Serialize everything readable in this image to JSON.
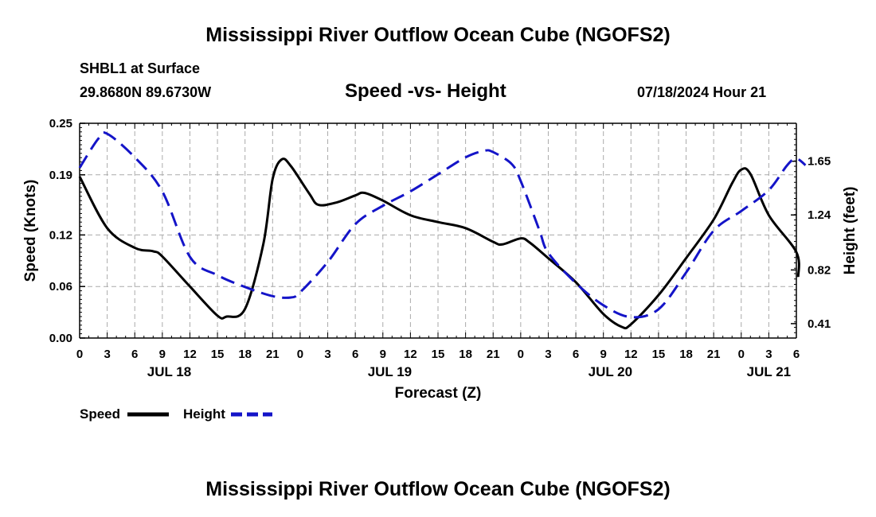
{
  "page": {
    "title_top": "Mississippi River Outflow Ocean Cube (NGOFS2)",
    "title_bottom": "Mississippi River Outflow Ocean Cube (NGOFS2)",
    "station": "SHBL1 at Surface",
    "coords": "29.8680N  89.6730W",
    "chart_subtitle": "Speed -vs- Height",
    "datetime": "07/18/2024 Hour 21"
  },
  "chart_data": {
    "type": "line",
    "xlabel": "Forecast (Z)",
    "ylabel_left": "Speed (Knots)",
    "ylabel_right": "Height (feet)",
    "x_unit": "hours since 2024-07-18 00Z",
    "xlim": [
      0,
      78
    ],
    "ylim_left": [
      0,
      0.25
    ],
    "ylim_right": [
      0.3,
      1.94
    ],
    "yticks_left": [
      0.0,
      0.06,
      0.12,
      0.19,
      0.25
    ],
    "ytick_labels_left": [
      "0.00",
      "0.06",
      "0.12",
      "0.19",
      "0.25"
    ],
    "yticks_right": [
      0.41,
      0.82,
      1.24,
      1.65
    ],
    "ytick_labels_right": [
      "0.41",
      "0.82",
      "1.24",
      "1.65"
    ],
    "xticks": [
      0,
      3,
      6,
      9,
      12,
      15,
      18,
      21,
      24,
      27,
      30,
      33,
      36,
      39,
      42,
      45,
      48,
      51,
      54,
      57,
      60,
      63,
      66,
      69,
      72,
      75,
      78
    ],
    "xtick_labels": [
      "0",
      "3",
      "6",
      "9",
      "12",
      "15",
      "18",
      "21",
      "0",
      "3",
      "6",
      "9",
      "12",
      "15",
      "18",
      "21",
      "0",
      "3",
      "6",
      "9",
      "12",
      "15",
      "18",
      "21",
      "0",
      "3",
      "6"
    ],
    "day_labels": [
      {
        "x": 9.75,
        "label": "JUL 18"
      },
      {
        "x": 33.75,
        "label": "JUL 19"
      },
      {
        "x": 57.75,
        "label": "JUL 20"
      },
      {
        "x": 75,
        "label": "JUL 21"
      }
    ],
    "grid": true,
    "legend_position": "bottom-left",
    "series": [
      {
        "name": "Speed",
        "axis": "left",
        "color": "#000000",
        "dash": "solid",
        "points": [
          [
            0,
            0.188
          ],
          [
            3,
            0.128
          ],
          [
            6,
            0.105
          ],
          [
            8,
            0.101
          ],
          [
            9,
            0.095
          ],
          [
            12,
            0.06
          ],
          [
            15,
            0.026
          ],
          [
            16,
            0.025
          ],
          [
            18,
            0.034
          ],
          [
            20,
            0.11
          ],
          [
            21,
            0.185
          ],
          [
            22,
            0.208
          ],
          [
            23,
            0.2
          ],
          [
            25,
            0.168
          ],
          [
            26,
            0.155
          ],
          [
            28,
            0.158
          ],
          [
            30,
            0.166
          ],
          [
            31,
            0.169
          ],
          [
            33,
            0.16
          ],
          [
            36,
            0.143
          ],
          [
            39,
            0.135
          ],
          [
            42,
            0.128
          ],
          [
            45,
            0.112
          ],
          [
            46,
            0.109
          ],
          [
            48,
            0.116
          ],
          [
            49,
            0.111
          ],
          [
            51,
            0.093
          ],
          [
            54,
            0.065
          ],
          [
            57,
            0.028
          ],
          [
            59,
            0.013
          ],
          [
            60,
            0.016
          ],
          [
            63,
            0.05
          ],
          [
            66,
            0.093
          ],
          [
            69,
            0.138
          ],
          [
            71,
            0.18
          ],
          [
            72,
            0.196
          ],
          [
            73,
            0.191
          ],
          [
            75,
            0.143
          ],
          [
            78,
            0.1
          ],
          [
            78.2,
            0.071
          ]
        ]
      },
      {
        "name": "Height",
        "axis": "right",
        "color": "#1414c8",
        "dash": "dashed",
        "points": [
          [
            0,
            1.6
          ],
          [
            2,
            1.82
          ],
          [
            3,
            1.86
          ],
          [
            6,
            1.68
          ],
          [
            9,
            1.42
          ],
          [
            12,
            0.92
          ],
          [
            15,
            0.78
          ],
          [
            18,
            0.69
          ],
          [
            21,
            0.62
          ],
          [
            23,
            0.61
          ],
          [
            24,
            0.65
          ],
          [
            27,
            0.88
          ],
          [
            30,
            1.17
          ],
          [
            33,
            1.31
          ],
          [
            36,
            1.42
          ],
          [
            39,
            1.55
          ],
          [
            42,
            1.68
          ],
          [
            44,
            1.73
          ],
          [
            45,
            1.72
          ],
          [
            47,
            1.63
          ],
          [
            48,
            1.5
          ],
          [
            50,
            1.13
          ],
          [
            51,
            0.95
          ],
          [
            54,
            0.72
          ],
          [
            57,
            0.55
          ],
          [
            60,
            0.46
          ],
          [
            63,
            0.52
          ],
          [
            66,
            0.8
          ],
          [
            69,
            1.12
          ],
          [
            72,
            1.27
          ],
          [
            75,
            1.43
          ],
          [
            77,
            1.62
          ],
          [
            78,
            1.67
          ],
          [
            79,
            1.62
          ]
        ]
      }
    ]
  }
}
